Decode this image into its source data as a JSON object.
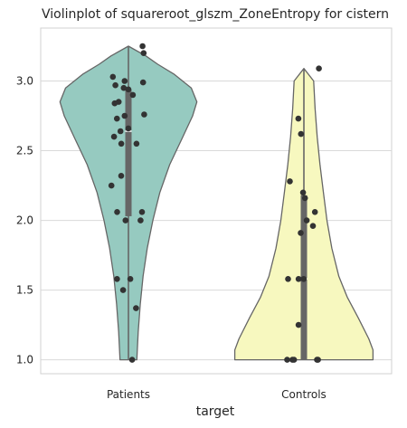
{
  "chart_data": {
    "type": "violin",
    "title": "Violinplot of squareroot_glszm_ZoneEntropy for cistern",
    "xlabel": "target",
    "ylabel": "",
    "categories": [
      "Patients",
      "Controls"
    ],
    "ylim": [
      0.9,
      3.38
    ],
    "yticks": [
      1.0,
      1.5,
      2.0,
      2.5,
      3.0
    ],
    "ytick_labels": [
      "1.0",
      "1.5",
      "2.0",
      "2.5",
      "3.0"
    ],
    "grid": "horizontal",
    "colors": {
      "Patients": "#96cac0",
      "Controls": "#f7f8bf",
      "outline": "#666666",
      "points": "#333333",
      "box": "#666666",
      "grid": "#d9d9d9"
    },
    "series": [
      {
        "name": "Patients",
        "values": [
          3.25,
          3.2,
          3.03,
          3.0,
          2.99,
          2.97,
          2.95,
          2.94,
          2.9,
          2.85,
          2.84,
          2.76,
          2.75,
          2.73,
          2.66,
          2.64,
          2.6,
          2.55,
          2.55,
          2.32,
          2.25,
          2.06,
          2.06,
          2.0,
          2.0,
          1.58,
          1.58,
          1.5,
          1.37,
          1.0
        ],
        "box": {
          "q1": 2.03,
          "median": 2.64,
          "q3": 2.94,
          "whisker_low": 1.0,
          "whisker_high": 3.25
        },
        "violin": {
          "ymin": 1.0,
          "ymax": 3.25,
          "profile": [
            [
              1.0,
              0.12
            ],
            [
              1.2,
              0.14
            ],
            [
              1.4,
              0.17
            ],
            [
              1.6,
              0.21
            ],
            [
              1.8,
              0.27
            ],
            [
              2.0,
              0.35
            ],
            [
              2.2,
              0.45
            ],
            [
              2.4,
              0.59
            ],
            [
              2.6,
              0.78
            ],
            [
              2.75,
              0.92
            ],
            [
              2.85,
              0.98
            ],
            [
              2.95,
              0.9
            ],
            [
              3.05,
              0.65
            ],
            [
              3.12,
              0.42
            ],
            [
              3.18,
              0.25
            ],
            [
              3.25,
              0.0
            ]
          ]
        }
      },
      {
        "name": "Controls",
        "values": [
          3.09,
          2.73,
          2.62,
          2.28,
          2.2,
          2.16,
          2.06,
          2.0,
          1.96,
          1.91,
          1.58,
          1.58,
          1.58,
          1.25,
          1.0,
          1.0,
          1.0,
          1.0,
          1.0
        ],
        "box": {
          "q1": 1.0,
          "median": 1.58,
          "q3": 2.18,
          "whisker_low": 1.0,
          "whisker_high": 3.09
        },
        "violin": {
          "ymin": 1.0,
          "ymax": 3.09,
          "profile": [
            [
              1.0,
              0.99
            ],
            [
              1.07,
              0.99
            ],
            [
              1.15,
              0.93
            ],
            [
              1.3,
              0.78
            ],
            [
              1.45,
              0.62
            ],
            [
              1.6,
              0.5
            ],
            [
              1.8,
              0.4
            ],
            [
              2.0,
              0.33
            ],
            [
              2.2,
              0.28
            ],
            [
              2.4,
              0.23
            ],
            [
              2.6,
              0.19
            ],
            [
              2.8,
              0.16
            ],
            [
              3.0,
              0.14
            ],
            [
              3.09,
              0.0
            ]
          ]
        }
      }
    ]
  }
}
